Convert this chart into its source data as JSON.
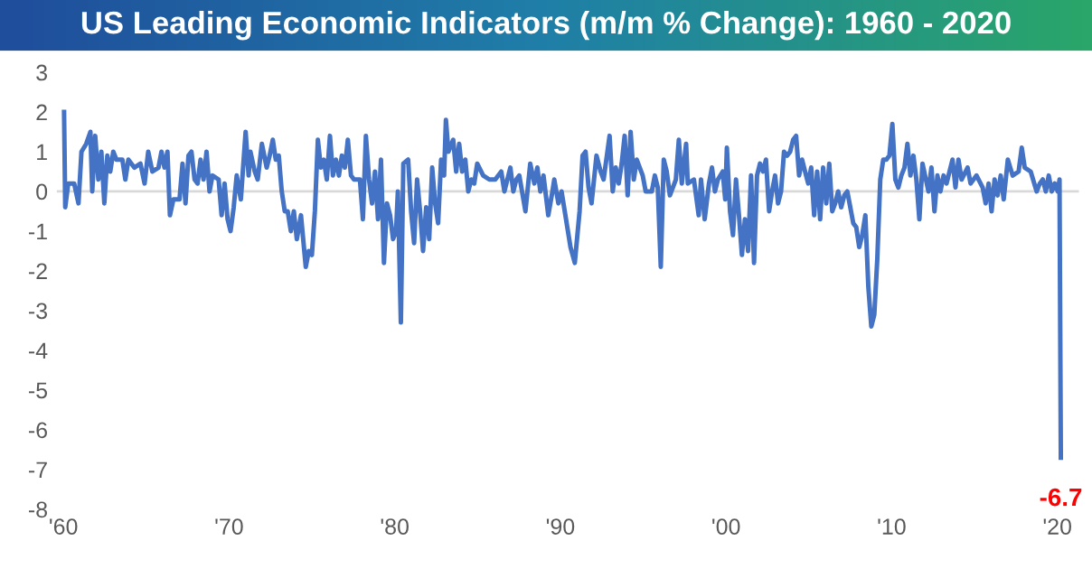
{
  "chart_data": {
    "type": "line",
    "title": "US Leading Economic Indicators (m/m % Change): 1960 - 2020",
    "x": [
      1960.04,
      1960.11,
      1960.29,
      1960.65,
      1960.91,
      1961.09,
      1961.38,
      1961.63,
      1961.74,
      1961.92,
      1962.11,
      1962.29,
      1962.47,
      1962.65,
      1962.83,
      1963.01,
      1963.2,
      1963.56,
      1963.74,
      1963.92,
      1964.28,
      1964.65,
      1964.9,
      1965.12,
      1965.37,
      1965.74,
      1965.92,
      1966.1,
      1966.28,
      1966.43,
      1966.64,
      1967.01,
      1967.19,
      1967.37,
      1967.55,
      1967.73,
      1967.92,
      1968.1,
      1968.28,
      1968.46,
      1968.64,
      1968.82,
      1969.0,
      1969.37,
      1969.55,
      1969.73,
      1969.91,
      1970.09,
      1970.28,
      1970.46,
      1970.71,
      1971.0,
      1971.18,
      1971.29,
      1971.55,
      1971.73,
      1971.98,
      1972.27,
      1972.45,
      1972.64,
      1972.82,
      1973.0,
      1973.18,
      1973.36,
      1973.54,
      1973.73,
      1973.91,
      1974.09,
      1974.34,
      1974.63,
      1974.81,
      1975.0,
      1975.18,
      1975.36,
      1975.54,
      1975.72,
      1975.9,
      1976.09,
      1976.27,
      1976.45,
      1976.63,
      1976.81,
      1976.99,
      1977.17,
      1977.36,
      1977.54,
      1977.9,
      1978.08,
      1978.26,
      1978.45,
      1978.63,
      1978.81,
      1978.99,
      1979.17,
      1979.35,
      1979.53,
      1979.72,
      1979.9,
      1980.08,
      1980.19,
      1980.37,
      1980.52,
      1980.81,
      1980.99,
      1981.17,
      1981.35,
      1981.53,
      1981.71,
      1981.9,
      1982.08,
      1982.26,
      1982.44,
      1982.62,
      1982.8,
      1982.98,
      1983.09,
      1983.24,
      1983.53,
      1983.71,
      1983.89,
      1984.07,
      1984.26,
      1984.44,
      1984.62,
      1984.8,
      1984.98,
      1985.34,
      1985.71,
      1986.07,
      1986.43,
      1986.62,
      1986.98,
      1987.16,
      1987.34,
      1987.52,
      1987.89,
      1988.18,
      1988.43,
      1988.61,
      1988.79,
      1988.98,
      1989.27,
      1989.52,
      1989.63,
      1989.88,
      1990.07,
      1990.61,
      1990.87,
      1991.16,
      1991.34,
      1991.52,
      1991.7,
      1991.88,
      1992.18,
      1992.43,
      1992.61,
      1992.97,
      1993.16,
      1993.34,
      1993.52,
      1993.7,
      1993.88,
      1994.06,
      1994.24,
      1994.43,
      1994.61,
      1994.97,
      1995.15,
      1995.52,
      1995.7,
      1995.88,
      1996.06,
      1996.24,
      1996.42,
      1996.61,
      1996.97,
      1997.15,
      1997.33,
      1997.59,
      1997.69,
      1998.06,
      1998.35,
      1998.49,
      1998.71,
      1998.97,
      1999.15,
      1999.33,
      1999.51,
      1999.8,
      1999.95,
      2000.05,
      2000.24,
      2000.42,
      2000.6,
      2000.78,
      2000.96,
      2001.14,
      2001.33,
      2001.51,
      2001.69,
      2001.87,
      2002.05,
      2002.23,
      2002.41,
      2002.6,
      2002.78,
      2002.96,
      2003.14,
      2003.32,
      2003.5,
      2003.69,
      2003.87,
      2004.05,
      2004.23,
      2004.41,
      2004.59,
      2004.77,
      2004.96,
      2005.14,
      2005.32,
      2005.5,
      2005.68,
      2005.86,
      2006.05,
      2006.23,
      2006.41,
      2006.59,
      2006.77,
      2006.95,
      2007.14,
      2007.32,
      2007.5,
      2007.68,
      2007.86,
      2008.04,
      2008.22,
      2008.41,
      2008.59,
      2008.77,
      2008.95,
      2009.13,
      2009.31,
      2009.49,
      2009.68,
      2009.86,
      2010.04,
      2010.22,
      2010.4,
      2010.58,
      2010.77,
      2010.95,
      2011.13,
      2011.31,
      2011.49,
      2011.67,
      2011.86,
      2012.22,
      2012.4,
      2012.58,
      2012.76,
      2012.94,
      2013.13,
      2013.31,
      2013.67,
      2013.85,
      2014.03,
      2014.22,
      2014.58,
      2014.76,
      2015.12,
      2015.49,
      2015.67,
      2015.85,
      2016.03,
      2016.21,
      2016.39,
      2016.58,
      2016.76,
      2017.01,
      2017.3,
      2017.66,
      2017.85,
      2018.03,
      2018.39,
      2018.75,
      2018.94,
      2019.12,
      2019.3,
      2019.48,
      2019.66,
      2019.84,
      2020.03,
      2020.13,
      2020.21
    ],
    "series": [
      {
        "color": "#4472c4",
        "values": [
          2.0,
          -0.4,
          0.2,
          0.2,
          -0.3,
          1.0,
          1.2,
          1.5,
          0,
          1.4,
          0.3,
          1.0,
          -0.3,
          0.9,
          0.5,
          1.0,
          0.8,
          0.8,
          0.3,
          0.8,
          0.6,
          0.7,
          0.2,
          1.0,
          0.5,
          0.6,
          1.0,
          0.6,
          1.0,
          -0.6,
          -0.2,
          -0.2,
          0.7,
          -0.3,
          0.9,
          1.0,
          0.3,
          0.2,
          0.8,
          0.3,
          1.0,
          0,
          0.4,
          0.3,
          -0.6,
          0.2,
          -0.7,
          -1.0,
          -0.4,
          0.4,
          -0.2,
          1.5,
          0.4,
          1.0,
          0.5,
          0.3,
          1.2,
          0.6,
          0.9,
          1.3,
          0.8,
          0.9,
          0.0,
          -0.5,
          -0.5,
          -1.0,
          -0.5,
          -1.2,
          -0.6,
          -1.9,
          -1.5,
          -1.6,
          -0.5,
          1.3,
          0.6,
          0.8,
          0.3,
          1.4,
          0.4,
          0.8,
          0.4,
          0.9,
          0.6,
          1.3,
          0.4,
          0.3,
          0.3,
          -0.7,
          1.4,
          0.3,
          -0.3,
          0.5,
          -0.7,
          0.8,
          -1.8,
          -0.3,
          -0.6,
          -1.2,
          -1.0,
          0.0,
          -3.3,
          0.7,
          0.8,
          -0.5,
          -1.3,
          0.3,
          -0.5,
          -1.5,
          -0.4,
          -1.2,
          0.6,
          -0.3,
          -0.8,
          0.8,
          0.4,
          1.8,
          1.0,
          1.3,
          0.5,
          1.2,
          0.5,
          0.8,
          0,
          0.3,
          0.2,
          0.7,
          0.4,
          0.3,
          0.3,
          0.5,
          0.0,
          0.6,
          0,
          0.3,
          0.4,
          -0.5,
          0.7,
          0.2,
          0.6,
          0.0,
          0.4,
          -0.6,
          0.0,
          0.3,
          -0.3,
          0.0,
          -1.4,
          -1.8,
          -0.5,
          0.9,
          1.0,
          0.1,
          -0.3,
          0.9,
          0.5,
          0.3,
          1.4,
          0,
          0.6,
          0.2,
          0.7,
          1.4,
          -0.1,
          1.5,
          0.3,
          0.8,
          0.4,
          0,
          0,
          0.4,
          0.1,
          -1.9,
          0.8,
          0.5,
          -0.1,
          0.3,
          1.3,
          0.2,
          1.2,
          0.2,
          0.3,
          -0.6,
          0.3,
          -0.7,
          0.2,
          0.6,
          0,
          0.3,
          0.5,
          -0.2,
          1.1,
          -0.5,
          -1.1,
          0.3,
          -0.6,
          -1.6,
          -0.7,
          -1.5,
          0.4,
          -1.8,
          0.4,
          0.7,
          0.5,
          0.8,
          -0.5,
          0,
          0.4,
          -0.3,
          0.0,
          1.0,
          0.9,
          1.0,
          1.3,
          1.4,
          0.4,
          0.8,
          0.5,
          0.2,
          0.6,
          -0.6,
          0.5,
          -0.7,
          0.6,
          -0.3,
          0.7,
          -0.5,
          -0.3,
          0.0,
          -0.4,
          -0.1,
          0.0,
          -0.4,
          -0.8,
          -0.9,
          -1.4,
          -1.1,
          -0.6,
          -2.4,
          -3.4,
          -3.1,
          -1.7,
          0.3,
          0.8,
          0.8,
          0.9,
          1.7,
          0.3,
          0.1,
          0.4,
          0.6,
          1.2,
          0.4,
          0.9,
          0.3,
          -0.7,
          0.7,
          0.0,
          0.6,
          -0.5,
          0.4,
          0.0,
          0.4,
          0.2,
          0.8,
          0.1,
          0.8,
          0.3,
          0.6,
          0.2,
          0.4,
          0.1,
          -0.3,
          0.2,
          -0.5,
          0.3,
          -0.1,
          0.4,
          -0.2,
          0.8,
          0.4,
          0.5,
          1.1,
          0.6,
          0.5,
          0,
          0.2,
          0.3,
          0,
          0.4,
          0,
          0.2,
          0,
          0.3,
          -6.7
        ]
      }
    ],
    "xlim": [
      1959.6,
      2021.3
    ],
    "xticks": [
      {
        "value": 1960,
        "label": "'60"
      },
      {
        "value": 1970,
        "label": "'70"
      },
      {
        "value": 1980,
        "label": "'80"
      },
      {
        "value": 1990,
        "label": "'90"
      },
      {
        "value": 2000,
        "label": "'00"
      },
      {
        "value": 2010,
        "label": "'10"
      },
      {
        "value": 2020,
        "label": "'20"
      }
    ],
    "ylim": [
      -8,
      3
    ],
    "yticks": [
      -8,
      -7,
      -6,
      -5,
      -4,
      -3,
      -2,
      -1,
      0,
      1,
      2,
      3
    ],
    "ref_lines": [
      {
        "axis": "y",
        "value": 0,
        "color": "#d9d9d9"
      }
    ],
    "annotations": [
      {
        "text": "-6.7",
        "x": 2020.21,
        "y": -6.7
      }
    ],
    "grid": false,
    "legend": false,
    "marker": "none",
    "line_style": "solid"
  }
}
